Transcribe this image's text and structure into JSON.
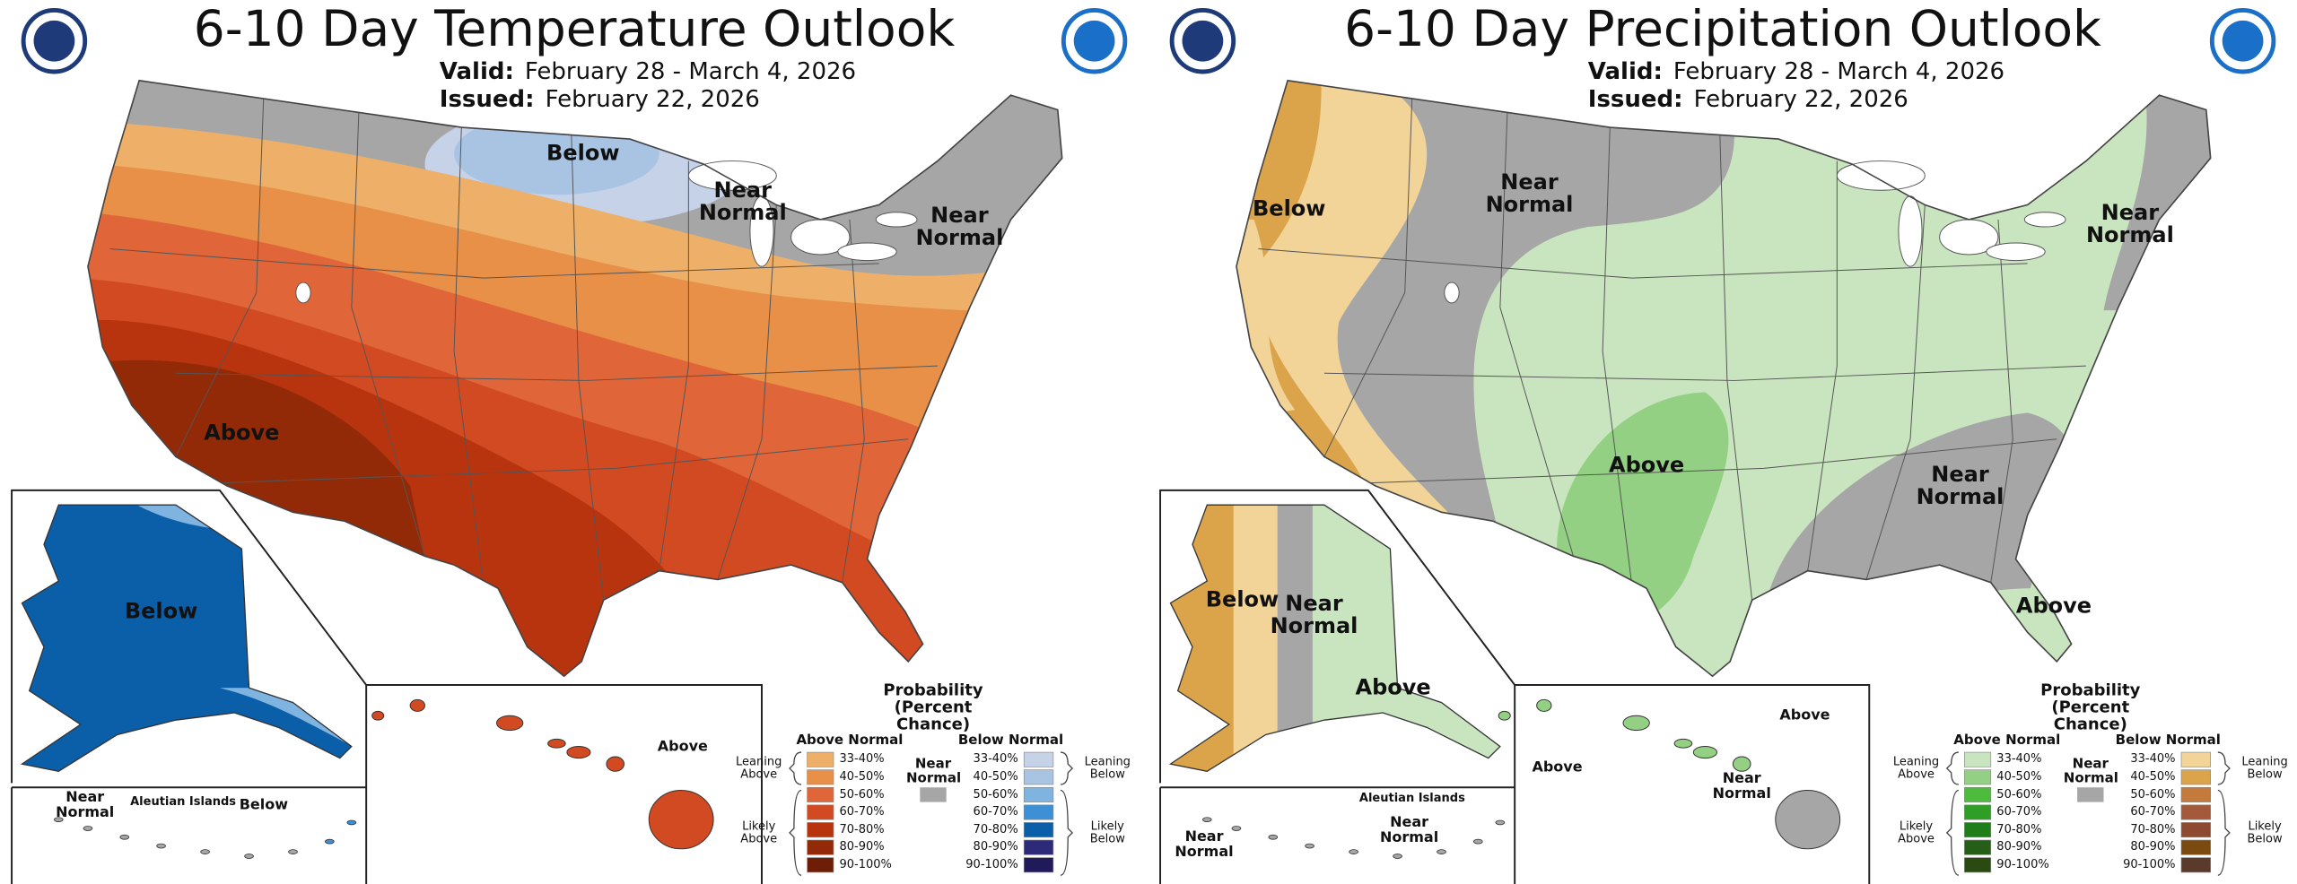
{
  "panels": [
    {
      "title": "6-10 Day Temperature Outlook",
      "valid": {
        "label": "Valid:",
        "text": "February 28 - March 4, 2026"
      },
      "issued": {
        "label": "Issued:",
        "text": "February 22, 2026"
      },
      "map_labels": [
        "Below",
        "Near Normal",
        "Near Normal",
        "Above"
      ],
      "alaska_labels": [
        "Below"
      ],
      "aleutian_labels": [
        "Near Normal",
        "Aleutian Islands",
        "Below"
      ],
      "hawaii_labels": [
        "Above"
      ],
      "legend": {
        "title": "Probability (Percent Chance)",
        "above_heading": "Above Normal",
        "below_heading": "Below Normal",
        "near_heading": "Near Normal",
        "near_color": "#a6a6a6",
        "above_groups": [
          "Leaning Above",
          "Likely Above"
        ],
        "below_groups": [
          "Leaning Below",
          "Likely Below"
        ],
        "above": [
          {
            "label": "33-40%",
            "color": "#eeb068"
          },
          {
            "label": "40-50%",
            "color": "#e88f48"
          },
          {
            "label": "50-60%",
            "color": "#e0663a"
          },
          {
            "label": "60-70%",
            "color": "#d14a22"
          },
          {
            "label": "70-80%",
            "color": "#b7340f"
          },
          {
            "label": "80-90%",
            "color": "#922a08"
          },
          {
            "label": "90-100%",
            "color": "#6e1e06"
          }
        ],
        "below": [
          {
            "label": "33-40%",
            "color": "#c5d2e8"
          },
          {
            "label": "40-50%",
            "color": "#a9c3e3"
          },
          {
            "label": "50-60%",
            "color": "#7fb3e0"
          },
          {
            "label": "60-70%",
            "color": "#3d8fd6"
          },
          {
            "label": "70-80%",
            "color": "#0b5ea8"
          },
          {
            "label": "80-90%",
            "color": "#2d2a7a"
          },
          {
            "label": "90-100%",
            "color": "#201a5a"
          }
        ]
      }
    },
    {
      "title": "6-10 Day Precipitation Outlook",
      "valid": {
        "label": "Valid:",
        "text": "February 28 - March 4, 2026"
      },
      "issued": {
        "label": "Issued:",
        "text": "February 22, 2026"
      },
      "map_labels": [
        "Below",
        "Near Normal",
        "Near Normal",
        "Above",
        "Near Normal",
        "Above"
      ],
      "alaska_labels": [
        "Below",
        "Near Normal",
        "Above"
      ],
      "aleutian_labels": [
        "Aleutian Islands",
        "Near Normal",
        "Near Normal"
      ],
      "hawaii_labels": [
        "Above",
        "Near Normal",
        "Above"
      ],
      "legend": {
        "title": "Probability (Percent Chance)",
        "above_heading": "Above Normal",
        "below_heading": "Below Normal",
        "near_heading": "Near Normal",
        "near_color": "#a6a6a6",
        "above_groups": [
          "Leaning Above",
          "Likely Above"
        ],
        "below_groups": [
          "Leaning Below",
          "Likely Below"
        ],
        "above": [
          {
            "label": "33-40%",
            "color": "#c9e5bf"
          },
          {
            "label": "40-50%",
            "color": "#94d083"
          },
          {
            "label": "50-60%",
            "color": "#4dbb3c"
          },
          {
            "label": "60-70%",
            "color": "#2e9e24"
          },
          {
            "label": "70-80%",
            "color": "#1f7d1a"
          },
          {
            "label": "80-90%",
            "color": "#255e16"
          },
          {
            "label": "90-100%",
            "color": "#2a4a12"
          }
        ],
        "below": [
          {
            "label": "33-40%",
            "color": "#f2d498"
          },
          {
            "label": "40-50%",
            "color": "#dba34a"
          },
          {
            "label": "50-60%",
            "color": "#c37a3a"
          },
          {
            "label": "60-70%",
            "color": "#a45a3a"
          },
          {
            "label": "70-80%",
            "color": "#8e4a30"
          },
          {
            "label": "80-90%",
            "color": "#7a4a10"
          },
          {
            "label": "90-100%",
            "color": "#5a3a2a"
          }
        ]
      }
    }
  ]
}
